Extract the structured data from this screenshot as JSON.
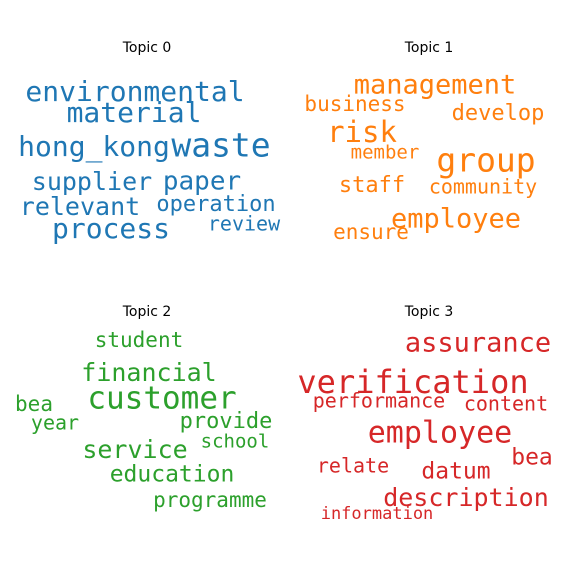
{
  "chart_data": [
    {
      "type": "wordcloud",
      "title": "Topic 0",
      "color": "#1f77b4",
      "words": [
        {
          "text": "environmental",
          "weight": 28
        },
        {
          "text": "material",
          "weight": 28
        },
        {
          "text": "hong_kong",
          "weight": 28
        },
        {
          "text": "waste",
          "weight": 33
        },
        {
          "text": "supplier",
          "weight": 25
        },
        {
          "text": "paper",
          "weight": 26
        },
        {
          "text": "relevant",
          "weight": 25
        },
        {
          "text": "operation",
          "weight": 22
        },
        {
          "text": "process",
          "weight": 28
        },
        {
          "text": "review",
          "weight": 20
        }
      ]
    },
    {
      "type": "wordcloud",
      "title": "Topic 1",
      "color": "#ff7f0e",
      "words": [
        {
          "text": "management",
          "weight": 27
        },
        {
          "text": "business",
          "weight": 21
        },
        {
          "text": "develop",
          "weight": 22
        },
        {
          "text": "risk",
          "weight": 29
        },
        {
          "text": "member",
          "weight": 19
        },
        {
          "text": "group",
          "weight": 33
        },
        {
          "text": "staff",
          "weight": 22
        },
        {
          "text": "community",
          "weight": 20
        },
        {
          "text": "employee",
          "weight": 27
        },
        {
          "text": "ensure",
          "weight": 21
        }
      ]
    },
    {
      "type": "wordcloud",
      "title": "Topic 2",
      "color": "#2ca02c",
      "words": [
        {
          "text": "student",
          "weight": 21
        },
        {
          "text": "financial",
          "weight": 25
        },
        {
          "text": "customer",
          "weight": 31
        },
        {
          "text": "bea",
          "weight": 21
        },
        {
          "text": "year",
          "weight": 20
        },
        {
          "text": "provide",
          "weight": 22
        },
        {
          "text": "service",
          "weight": 25
        },
        {
          "text": "school",
          "weight": 19
        },
        {
          "text": "education",
          "weight": 23
        },
        {
          "text": "programme",
          "weight": 21
        }
      ]
    },
    {
      "type": "wordcloud",
      "title": "Topic 3",
      "color": "#d62728",
      "words": [
        {
          "text": "assurance",
          "weight": 27
        },
        {
          "text": "verification",
          "weight": 32
        },
        {
          "text": "performance",
          "weight": 20
        },
        {
          "text": "content",
          "weight": 20
        },
        {
          "text": "employee",
          "weight": 30
        },
        {
          "text": "bea",
          "weight": 23
        },
        {
          "text": "relate",
          "weight": 20
        },
        {
          "text": "datum",
          "weight": 23
        },
        {
          "text": "description",
          "weight": 25
        },
        {
          "text": "information",
          "weight": 17
        }
      ]
    }
  ]
}
